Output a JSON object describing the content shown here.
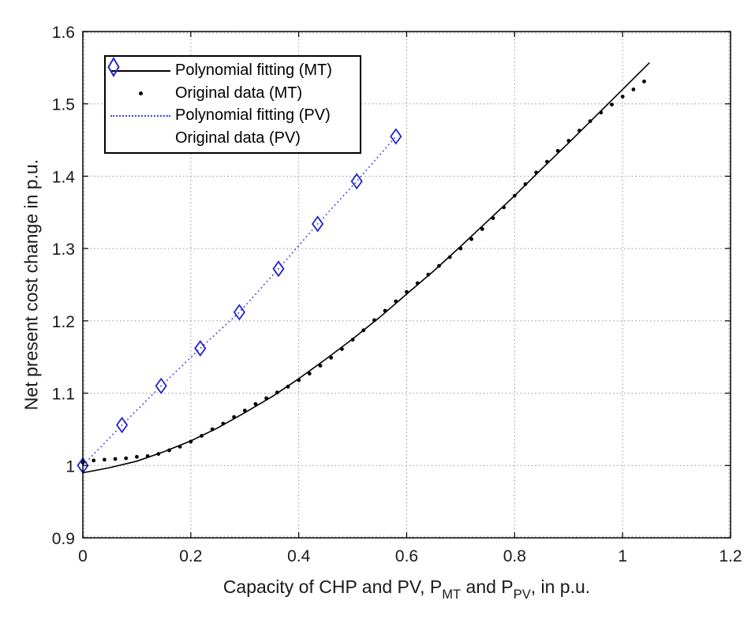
{
  "chart_data": {
    "type": "line",
    "title": "",
    "ylabel": "Net present cost change in p.u.",
    "xlabel": "Capacity of CHP and PV, P_MT and P_PV, in p.u.",
    "xlabel_parts": {
      "prefix": "Capacity of CHP and PV, P",
      "sub1": "MT",
      "mid": " and P",
      "sub2": "PV",
      "suffix": ", in p.u."
    },
    "xlim": [
      0,
      1.2
    ],
    "ylim": [
      0.9,
      1.6
    ],
    "grid": "dotted",
    "xticks": {
      "values": [
        0,
        0.2,
        0.4,
        0.6,
        0.8,
        1,
        1.2
      ],
      "labels": [
        "0",
        "0.2",
        "0.4",
        "0.6",
        "0.8",
        "1",
        "1.2"
      ]
    },
    "yticks": {
      "values": [
        0.9,
        1,
        1.1,
        1.2,
        1.3,
        1.4,
        1.5,
        1.6
      ],
      "labels": [
        "0.9",
        "1",
        "1.1",
        "1.2",
        "1.3",
        "1.4",
        "1.5",
        "1.6"
      ]
    },
    "colors": {
      "mt": "#000000",
      "pv_line": "#4343dd",
      "pv_marker": "#2424cc",
      "grid": "#909090",
      "axis": "#000000",
      "tick_label": "#1a1a1a"
    },
    "legend": {
      "position": "top-left",
      "items": [
        {
          "label": "Polynomial fitting (MT)",
          "sample": "solid-black-line"
        },
        {
          "label": "Original data (MT)",
          "sample": "black-dot"
        },
        {
          "label": "Polynomial fitting (PV)",
          "sample": "blue-dotted-line"
        },
        {
          "label": "Original data (PV)",
          "sample": "blue-diamond"
        }
      ]
    },
    "series": [
      {
        "name": "Polynomial fitting (MT)",
        "kind": "line",
        "style": "solid",
        "color": "#000000",
        "x": [
          0,
          0.05,
          0.1,
          0.15,
          0.2,
          0.25,
          0.3,
          0.35,
          0.4,
          0.45,
          0.5,
          0.55,
          0.6,
          0.65,
          0.7,
          0.75,
          0.8,
          0.85,
          0.9,
          0.95,
          1,
          1.05
        ],
        "y": [
          0.99,
          0.997,
          1.006,
          1.019,
          1.034,
          1.052,
          1.073,
          1.095,
          1.12,
          1.147,
          1.175,
          1.205,
          1.237,
          1.269,
          1.303,
          1.338,
          1.373,
          1.41,
          1.446,
          1.483,
          1.52,
          1.557
        ]
      },
      {
        "name": "Original data (MT)",
        "kind": "scatter",
        "marker": "dot",
        "color": "#000000",
        "x": [
          0,
          0.02,
          0.04,
          0.06,
          0.08,
          0.1,
          0.12,
          0.14,
          0.16,
          0.18,
          0.2,
          0.22,
          0.24,
          0.26,
          0.28,
          0.3,
          0.32,
          0.34,
          0.36,
          0.38,
          0.4,
          0.42,
          0.44,
          0.46,
          0.48,
          0.5,
          0.52,
          0.54,
          0.56,
          0.58,
          0.6,
          0.62,
          0.64,
          0.66,
          0.68,
          0.7,
          0.72,
          0.74,
          0.76,
          0.78,
          0.8,
          0.82,
          0.84,
          0.86,
          0.88,
          0.9,
          0.92,
          0.94,
          0.96,
          0.98,
          1,
          1.02,
          1.04
        ],
        "y": [
          1.004,
          1.007,
          1.008,
          1.009,
          1.01,
          1.012,
          1.013,
          1.016,
          1.021,
          1.026,
          1.033,
          1.041,
          1.05,
          1.058,
          1.067,
          1.076,
          1.085,
          1.093,
          1.101,
          1.109,
          1.118,
          1.127,
          1.138,
          1.149,
          1.161,
          1.174,
          1.187,
          1.201,
          1.214,
          1.227,
          1.24,
          1.252,
          1.264,
          1.276,
          1.288,
          1.3,
          1.313,
          1.327,
          1.342,
          1.357,
          1.373,
          1.389,
          1.405,
          1.42,
          1.435,
          1.449,
          1.463,
          1.476,
          1.488,
          1.499,
          1.51,
          1.52,
          1.531
        ]
      },
      {
        "name": "Polynomial fitting (PV)",
        "kind": "line",
        "style": "dotted",
        "color": "#4343dd",
        "x": [
          0,
          0.0725,
          0.145,
          0.2175,
          0.29,
          0.3625,
          0.435,
          0.5075,
          0.58
        ],
        "y": [
          1.0,
          1.056,
          1.11,
          1.162,
          1.212,
          1.272,
          1.334,
          1.393,
          1.455
        ]
      },
      {
        "name": "Original data (PV)",
        "kind": "scatter",
        "marker": "diamond",
        "color": "#2424cc",
        "x": [
          0,
          0.0725,
          0.145,
          0.2175,
          0.29,
          0.3625,
          0.435,
          0.5075,
          0.58
        ],
        "y": [
          1.0,
          1.056,
          1.11,
          1.162,
          1.212,
          1.272,
          1.334,
          1.393,
          1.455
        ]
      }
    ]
  }
}
